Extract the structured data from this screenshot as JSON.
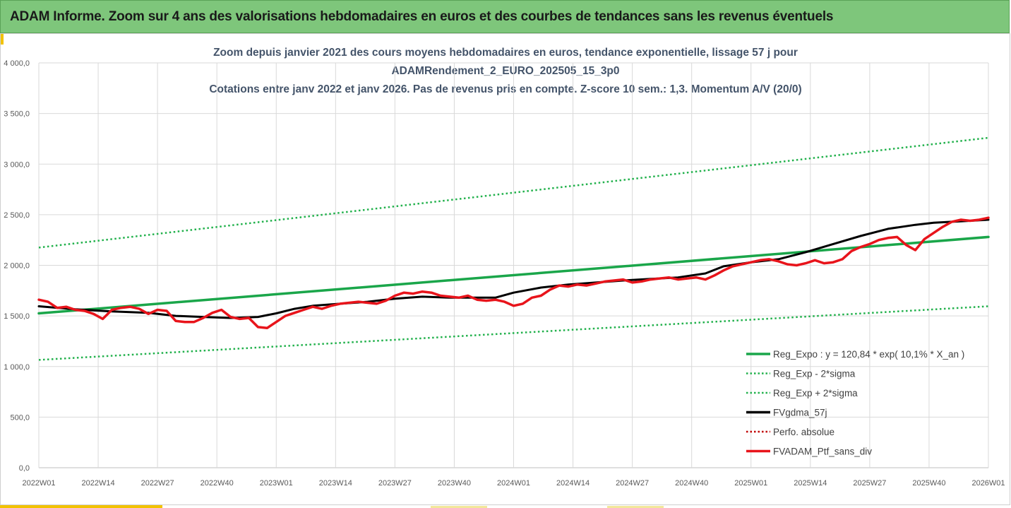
{
  "banner": {
    "title": "ADAM Informe. Zoom sur 4 ans des valorisations hebdomadaires en euros et des courbes de tendances sans les revenus éventuels"
  },
  "colors": {
    "banner_bg": "#7ec67b",
    "reg_expo": "#1aa64a",
    "sigma": "#22b14c",
    "fvgdma": "#000000",
    "perfo": "#c00000",
    "fvadam": "#e8141b",
    "grid": "#d9d9d9"
  },
  "chart_data": {
    "type": "line",
    "title_lines": [
      "Zoom depuis janvier 2021 des cours moyens hebdomadaires  en euros, tendance exponentielle, lissage 57 j pour",
      "ADAMRendement_2_EURO_202505_15_3p0",
      "Cotations entre janv 2022 et janv 2026. Pas de revenus pris en compte. Z-score 10 sem.: 1,3. Momentum A/V (20/0)"
    ],
    "x_tick_labels": [
      "2022W01",
      "2022W14",
      "2022W27",
      "2022W40",
      "2023W01",
      "2023W14",
      "2023W27",
      "2023W40",
      "2024W01",
      "2024W14",
      "2024W27",
      "2024W40",
      "2025W01",
      "2025W14",
      "2025W27",
      "2025W40",
      "2026W01"
    ],
    "y_tick_labels": [
      "0,0",
      "500,0",
      "1 000,0",
      "1 500,0",
      "2 000,0",
      "2 500,0",
      "3 000,0",
      "3 500,0",
      "4 000,0"
    ],
    "ylim": [
      0,
      4000
    ],
    "xlim": [
      0,
      208
    ],
    "legend": [
      {
        "name": "Reg_Expo : y = 120,84 * exp( 10,1% *  X_an )",
        "style": "solid",
        "color": "#1aa64a"
      },
      {
        "name": "Reg_Exp - 2*sigma",
        "style": "dotted",
        "color": "#22b14c"
      },
      {
        "name": "Reg_Exp + 2*sigma",
        "style": "dotted",
        "color": "#22b14c"
      },
      {
        "name": "FVgdma_57j",
        "style": "solid",
        "color": "#000000"
      },
      {
        "name": "Perfo. absolue",
        "style": "dotted",
        "color": "#c00000"
      },
      {
        "name": "FVADAM_Ptf_sans_div",
        "style": "solid",
        "color": "#e8141b"
      }
    ],
    "series": [
      {
        "name": "Reg_Expo",
        "x": [
          0,
          208
        ],
        "y": [
          1525,
          2280
        ]
      },
      {
        "name": "Reg_Exp - 2*sigma",
        "x": [
          0,
          208
        ],
        "y": [
          1065,
          1595
        ]
      },
      {
        "name": "Reg_Exp + 2*sigma",
        "x": [
          0,
          208
        ],
        "y": [
          2175,
          3260
        ]
      },
      {
        "name": "FVgdma_57j",
        "x": [
          0,
          8,
          16,
          24,
          30,
          36,
          42,
          48,
          52,
          56,
          60,
          66,
          72,
          78,
          84,
          90,
          96,
          100,
          104,
          110,
          116,
          122,
          128,
          134,
          140,
          146,
          150,
          156,
          162,
          168,
          174,
          180,
          186,
          192,
          196,
          200,
          204,
          208
        ],
        "y": [
          1595,
          1565,
          1545,
          1530,
          1500,
          1490,
          1480,
          1490,
          1525,
          1570,
          1600,
          1620,
          1640,
          1670,
          1690,
          1680,
          1680,
          1680,
          1730,
          1780,
          1810,
          1830,
          1850,
          1865,
          1880,
          1920,
          1990,
          2030,
          2060,
          2130,
          2210,
          2290,
          2360,
          2400,
          2420,
          2430,
          2440,
          2450
        ]
      },
      {
        "name": "FVADAM_Ptf_sans_div",
        "x": [
          0,
          2,
          4,
          6,
          8,
          10,
          12,
          14,
          16,
          18,
          20,
          22,
          24,
          26,
          28,
          30,
          32,
          34,
          36,
          38,
          40,
          42,
          44,
          46,
          48,
          50,
          52,
          54,
          56,
          58,
          60,
          62,
          64,
          66,
          68,
          70,
          72,
          74,
          76,
          78,
          80,
          82,
          84,
          86,
          88,
          90,
          92,
          94,
          96,
          98,
          100,
          102,
          104,
          106,
          108,
          110,
          112,
          114,
          116,
          118,
          120,
          122,
          124,
          126,
          128,
          130,
          132,
          134,
          136,
          138,
          140,
          142,
          144,
          146,
          148,
          150,
          152,
          154,
          156,
          158,
          160,
          162,
          164,
          166,
          168,
          170,
          172,
          174,
          176,
          178,
          180,
          182,
          184,
          186,
          188,
          190,
          192,
          194,
          196,
          198,
          200,
          202,
          204,
          206,
          208
        ],
        "y": [
          1660,
          1640,
          1580,
          1590,
          1560,
          1550,
          1520,
          1470,
          1560,
          1580,
          1590,
          1570,
          1520,
          1560,
          1550,
          1450,
          1440,
          1440,
          1480,
          1530,
          1560,
          1490,
          1470,
          1480,
          1390,
          1380,
          1440,
          1500,
          1530,
          1560,
          1590,
          1570,
          1600,
          1620,
          1630,
          1640,
          1630,
          1620,
          1650,
          1700,
          1730,
          1720,
          1740,
          1730,
          1700,
          1690,
          1680,
          1700,
          1660,
          1650,
          1660,
          1640,
          1600,
          1620,
          1680,
          1700,
          1760,
          1800,
          1790,
          1810,
          1800,
          1820,
          1840,
          1850,
          1860,
          1830,
          1840,
          1860,
          1870,
          1880,
          1860,
          1870,
          1880,
          1860,
          1900,
          1950,
          1990,
          2010,
          2030,
          2050,
          2060,
          2040,
          2010,
          2000,
          2020,
          2050,
          2020,
          2030,
          2060,
          2140,
          2180,
          2210,
          2250,
          2270,
          2280,
          2200,
          2150,
          2260,
          2320,
          2380,
          2430,
          2450,
          2440,
          2450,
          2470
        ]
      }
    ]
  }
}
